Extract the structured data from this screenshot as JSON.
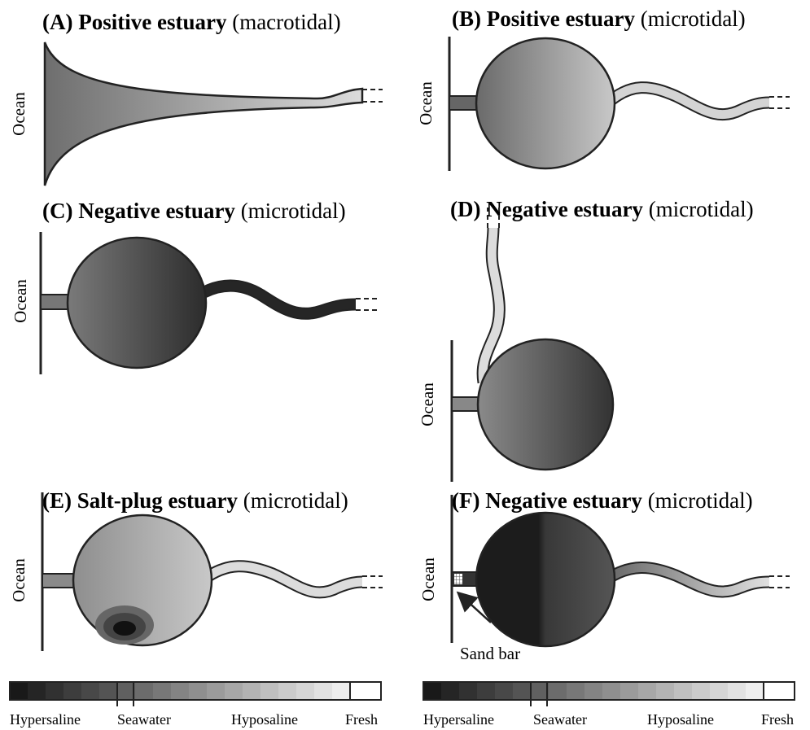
{
  "panels": [
    {
      "letter": "(A)",
      "name": "Positive estuary",
      "tide": "(macrotidal)",
      "side_label": "Ocean"
    },
    {
      "letter": "(B)",
      "name": "Positive estuary",
      "tide": "(microtidal)",
      "side_label": "Ocean"
    },
    {
      "letter": "(C)",
      "name": "Negative estuary",
      "tide": "(microtidal)",
      "side_label": "Ocean"
    },
    {
      "letter": "(D)",
      "name": "Negative estuary",
      "tide": "(microtidal)",
      "side_label": "Ocean"
    },
    {
      "letter": "(E)",
      "name": "Salt-plug estuary",
      "tide": "(microtidal)",
      "side_label": "Ocean"
    },
    {
      "letter": "(F)",
      "name": "Negative estuary",
      "tide": "(microtidal)",
      "side_label": "Ocean"
    }
  ],
  "sand_bar_label": "Sand bar",
  "legends": [
    {
      "labels": [
        "Hypersaline",
        "Seawater",
        "Hyposaline",
        "Fresh"
      ]
    },
    {
      "labels": [
        "Hypersaline",
        "Seawater",
        "Hyposaline",
        "Fresh"
      ]
    }
  ]
}
